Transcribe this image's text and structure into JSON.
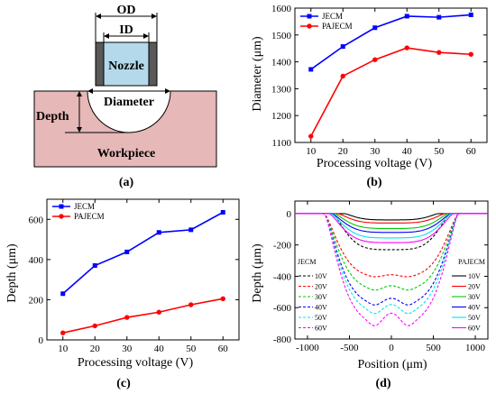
{
  "schematic": {
    "labels": {
      "od": "OD",
      "id": "ID",
      "nozzle": "Nozzle",
      "diameter": "Diameter",
      "depth": "Depth",
      "workpiece": "Workpiece"
    },
    "panel_label": "(a)",
    "colors": {
      "workpiece": "#e6b8b7",
      "nozzle_inner": "#b3d9ea",
      "nozzle_wall": "#595959"
    }
  },
  "chart_data": [
    {
      "type": "line",
      "panel_label": "(b)",
      "xlabel": "Processing voltage (V)",
      "ylabel": "Diameter (μm)",
      "x": [
        10,
        20,
        30,
        40,
        50,
        60
      ],
      "xlim": [
        5,
        65
      ],
      "xticks": [
        10,
        20,
        30,
        40,
        50,
        60
      ],
      "ylim": [
        1100,
        1600
      ],
      "yticks": [
        1100,
        1200,
        1300,
        1400,
        1500,
        1600
      ],
      "legend": "top-left",
      "series": [
        {
          "name": "JECM",
          "color": "#0000ff",
          "marker": "square",
          "values": [
            1372,
            1457,
            1527,
            1570,
            1566,
            1575
          ]
        },
        {
          "name": "PAJECM",
          "color": "#ff0000",
          "marker": "circle",
          "values": [
            1123,
            1347,
            1408,
            1452,
            1435,
            1428
          ]
        }
      ]
    },
    {
      "type": "line",
      "panel_label": "(c)",
      "xlabel": "Processing voltage (V)",
      "ylabel": "Depth (μm)",
      "x": [
        10,
        20,
        30,
        40,
        50,
        60
      ],
      "xlim": [
        5,
        65
      ],
      "xticks": [
        10,
        20,
        30,
        40,
        50,
        60
      ],
      "ylim": [
        0,
        700
      ],
      "yticks": [
        0,
        200,
        400,
        600
      ],
      "legend": "top-left",
      "series": [
        {
          "name": "JECM",
          "color": "#0000ff",
          "marker": "square",
          "values": [
            230,
            370,
            438,
            535,
            548,
            635
          ]
        },
        {
          "name": "PAJECM",
          "color": "#ff0000",
          "marker": "circle",
          "values": [
            35,
            70,
            112,
            138,
            175,
            205
          ]
        }
      ]
    },
    {
      "type": "line",
      "panel_label": "(d)",
      "xlabel": "Position (μm)",
      "ylabel": "Depth (μm)",
      "xlim": [
        -1150,
        1150
      ],
      "xticks": [
        -1000,
        -500,
        0,
        500,
        1000
      ],
      "ylim": [
        -800,
        80
      ],
      "yticks": [
        0,
        -200,
        -400,
        -600,
        -800
      ],
      "legend_groups": [
        {
          "title": "JECM",
          "style": "dashed"
        },
        {
          "title": "PAJECM",
          "style": "solid"
        }
      ],
      "voltage_labels": [
        "10V",
        "20V",
        "30V",
        "40V",
        "50V",
        "60V"
      ],
      "colors": [
        "#000000",
        "#ff0000",
        "#00cc00",
        "#0000ff",
        "#00e5e5",
        "#ff00ff"
      ],
      "jecm": {
        "half_width": [
          700,
          800,
          800,
          800,
          800,
          800
        ],
        "depth": [
          230,
          400,
          480,
          570,
          620,
          690
        ],
        "center_bump": [
          0,
          10,
          20,
          30,
          40,
          55
        ]
      },
      "pajecm": {
        "half_width": [
          560,
          640,
          680,
          710,
          720,
          740
        ],
        "depth": [
          40,
          60,
          95,
          120,
          155,
          185
        ],
        "center_bump": [
          0,
          0,
          0,
          0,
          0,
          0
        ]
      }
    }
  ]
}
